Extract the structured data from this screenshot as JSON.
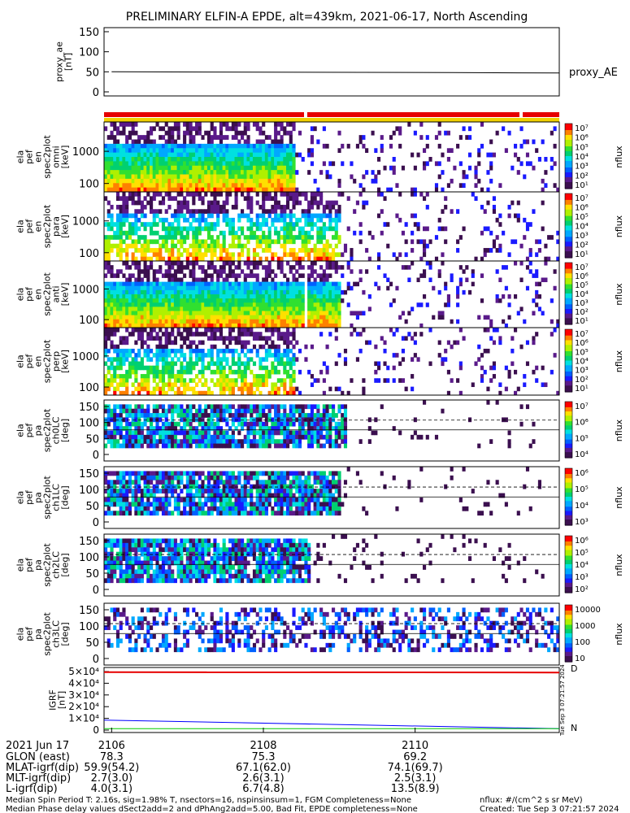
{
  "title": "PRELIMINARY ELFIN-A EPDE, alt=439km, 2021-06-17, North Ascending",
  "colors": {
    "status_red": "#e60000",
    "status_yellow": "#f0d000",
    "ae_line": "#000000",
    "igrf_blue": "#0000ff",
    "igrf_green": "#00cc00",
    "igrf_red": "#e60000"
  },
  "chart_data": [
    {
      "type": "line",
      "panel": "proxy_ae",
      "ylabel": "proxy_ae [nT]",
      "yticks": [
        "150",
        "100",
        "50",
        "0"
      ],
      "ylim": [
        0,
        150
      ],
      "series": [
        {
          "name": "proxy_AE",
          "x": [
            2106,
            2110.5,
            2111.9
          ],
          "values": [
            50,
            48,
            47
          ]
        }
      ]
    },
    {
      "type": "heatmap",
      "panel": "ela_pef_en_spec2plot_omni",
      "ylabel": [
        "ela",
        "pef",
        "en",
        "spec2plot",
        "omni",
        "[keV]"
      ],
      "yscale": "log",
      "yticks": [
        "1000",
        "100"
      ],
      "zlabel": "nflux",
      "zticks": [
        "10⁷",
        "10⁶",
        "10⁵",
        "10⁴",
        "10³",
        "10²",
        "10¹"
      ]
    },
    {
      "type": "heatmap",
      "panel": "ela_pef_en_spec2plot_para",
      "ylabel": [
        "ela",
        "pef",
        "en",
        "spec2plot",
        "para",
        "[keV]"
      ],
      "yscale": "log",
      "yticks": [
        "1000",
        "100"
      ],
      "zlabel": "nflux",
      "zticks": [
        "10⁷",
        "10⁶",
        "10⁵",
        "10⁴",
        "10³",
        "10²",
        "10¹"
      ]
    },
    {
      "type": "heatmap",
      "panel": "ela_pef_en_spec2plot_anti",
      "ylabel": [
        "ela",
        "pef",
        "en",
        "spec2plot",
        "anti",
        "[keV]"
      ],
      "yscale": "log",
      "yticks": [
        "1000",
        "100"
      ],
      "zlabel": "nflux",
      "zticks": [
        "10⁷",
        "10⁶",
        "10⁵",
        "10⁴",
        "10³",
        "10²",
        "10¹"
      ]
    },
    {
      "type": "heatmap",
      "panel": "ela_pef_en_spec2plot_perp",
      "ylabel": [
        "ela",
        "pef",
        "en",
        "spec2plot",
        "perp",
        "[keV]"
      ],
      "yscale": "log",
      "yticks": [
        "1000",
        "100"
      ],
      "zlabel": "nflux",
      "zticks": [
        "10⁷",
        "10⁶",
        "10⁵",
        "10⁴",
        "10³",
        "10²",
        "10¹"
      ]
    },
    {
      "type": "heatmap",
      "panel": "ela_pef_pa_spec2plot_ch0LC",
      "ylabel": [
        "ela",
        "pef",
        "pa",
        "spec2plot",
        "ch0LC",
        "[deg]"
      ],
      "yticks": [
        "150",
        "100",
        "50",
        "0"
      ],
      "ylim": [
        0,
        180
      ],
      "zlabel": "nflux",
      "zticks": [
        "10⁷",
        "10⁶",
        "10⁵",
        "10⁴"
      ]
    },
    {
      "type": "heatmap",
      "panel": "ela_pef_pa_spec2plot_ch1LC",
      "ylabel": [
        "ela",
        "pef",
        "pa",
        "spec2plot",
        "ch1LC",
        "[deg]"
      ],
      "yticks": [
        "150",
        "100",
        "50",
        "0"
      ],
      "ylim": [
        0,
        180
      ],
      "zlabel": "nflux",
      "zticks": [
        "10⁶",
        "10⁵",
        "10⁴",
        "10³"
      ]
    },
    {
      "type": "heatmap",
      "panel": "ela_pef_pa_spec2plot_ch2LC",
      "ylabel": [
        "ela",
        "pef",
        "pa",
        "spec2plot",
        "ch2LC",
        "[deg]"
      ],
      "yticks": [
        "150",
        "100",
        "50",
        "0"
      ],
      "ylim": [
        0,
        180
      ],
      "zlabel": "nflux",
      "zticks": [
        "10⁶",
        "10⁵",
        "10⁴",
        "10³",
        "10²"
      ]
    },
    {
      "type": "heatmap",
      "panel": "ela_pef_pa_spec2plot_ch3LC",
      "ylabel": [
        "ela",
        "pef",
        "pa",
        "spec2plot",
        "ch3LC",
        "[deg]"
      ],
      "yticks": [
        "150",
        "100",
        "50",
        "0"
      ],
      "ylim": [
        0,
        180
      ],
      "zlabel": "nflux",
      "zticks": [
        "10000",
        "1000",
        "100",
        "10"
      ]
    },
    {
      "type": "line",
      "panel": "ela_pos_igrf",
      "ylabel": [
        "IGRF",
        "[nT]"
      ],
      "yticks": [
        "5×10⁴",
        "4×10⁴",
        "3×10⁴",
        "2×10⁴",
        "1×10⁴",
        "0"
      ],
      "ylim": [
        0,
        50000
      ],
      "legend": [
        "D",
        "N"
      ],
      "series": [
        {
          "x": [
            2105.9,
            2111.9
          ],
          "values": [
            8500,
            1200
          ]
        },
        {
          "x": [
            2105.9,
            2111.9
          ],
          "values": [
            1200,
            1200
          ]
        },
        {
          "x": [
            2105.9,
            2111.9
          ],
          "values": [
            49500,
            49200
          ]
        }
      ]
    }
  ],
  "timestamp_vertical": "Tue Sep  3 07:21:57 2024",
  "ephemeris": {
    "header": "2021 Jun 17",
    "xticks": [
      "2106",
      "2108",
      "2110"
    ],
    "rows": [
      {
        "label": "GLON (east)",
        "values": [
          "78.3",
          "75.3",
          "69.2"
        ]
      },
      {
        "label": "MLAT-igrf(dip)",
        "values": [
          "59.9(54.2)",
          "67.1(62.0)",
          "74.1(69.7)"
        ]
      },
      {
        "label": "MLT-igrf(dip)",
        "values": [
          "2.7(3.0)",
          "2.6(3.1)",
          "2.5(3.1)"
        ]
      },
      {
        "label": "L-igrf(dip)",
        "values": [
          "4.0(3.1)",
          "6.7(4.8)",
          "13.5(8.9)"
        ]
      }
    ]
  },
  "footer": {
    "line1_left": "Median Spin Period T: 2.16s, sig=1.98% T, nsectors=16, nspinsinsum=1, FGM Completeness=None",
    "line1_right": "nflux: #/(cm^2 s sr MeV)",
    "line2_left": "Median Phase delay values dSect2add=2 and dPhAng2add=5.00, Bad Fit, EPDE completeness=None",
    "line2_right": "Created: Tue Sep  3 07:21:57 2024"
  }
}
